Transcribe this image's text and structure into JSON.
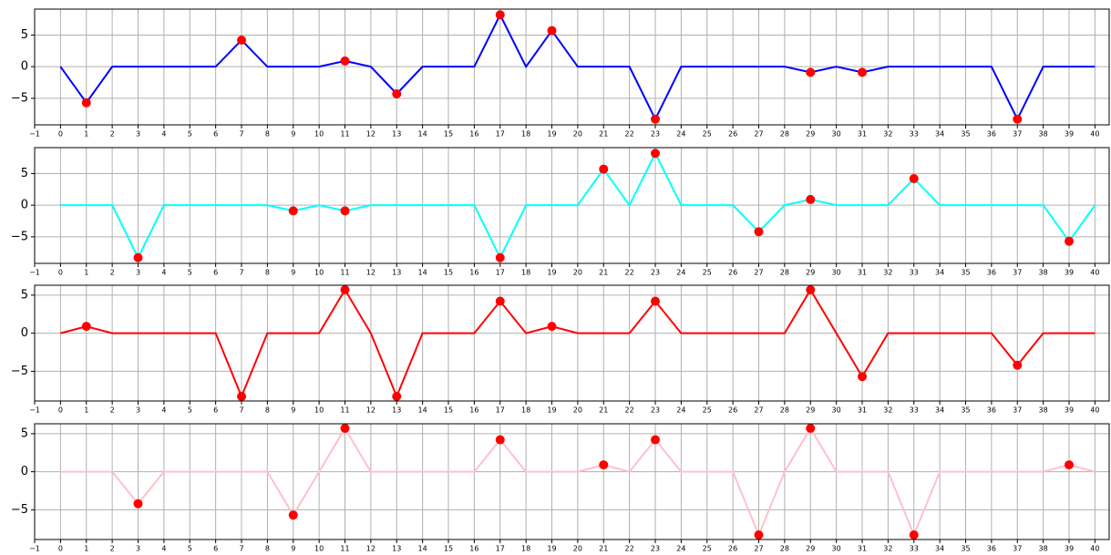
{
  "chart_data": [
    {
      "type": "line",
      "color": "#0000ff",
      "marker_color": "#ff0000",
      "grid": true,
      "x": [
        0,
        1,
        2,
        3,
        4,
        5,
        6,
        7,
        8,
        9,
        10,
        11,
        12,
        13,
        14,
        15,
        16,
        17,
        18,
        19,
        20,
        21,
        22,
        23,
        24,
        25,
        26,
        27,
        28,
        29,
        30,
        31,
        32,
        33,
        34,
        35,
        36,
        37,
        38,
        39,
        40
      ],
      "values": [
        0,
        -5.7,
        0,
        0,
        0,
        0,
        0,
        4.2,
        0,
        0,
        0,
        0.9,
        0,
        -4.3,
        0,
        0,
        0,
        8.2,
        0,
        5.7,
        0,
        0,
        0,
        -8.3,
        0,
        0,
        0,
        0,
        0,
        -0.9,
        0,
        -0.9,
        0,
        0,
        0,
        0,
        0,
        -8.3,
        0,
        0,
        0
      ],
      "xlim": [
        -1,
        40.55
      ],
      "xticks": [
        {
          "value": -1,
          "label": "−1"
        },
        0,
        1,
        2,
        3,
        4,
        5,
        6,
        7,
        8,
        9,
        10,
        11,
        12,
        13,
        14,
        15,
        16,
        17,
        18,
        19,
        20,
        21,
        22,
        23,
        24,
        25,
        26,
        27,
        28,
        29,
        30,
        31,
        32,
        33,
        34,
        35,
        36,
        37,
        38,
        39,
        40
      ],
      "ylim": [
        -9.2,
        9.1
      ],
      "yticks": [
        {
          "value": -5,
          "label": "−5"
        },
        0,
        5
      ]
    },
    {
      "type": "line",
      "color": "#00ffff",
      "marker_color": "#ff0000",
      "grid": true,
      "x": [
        0,
        1,
        2,
        3,
        4,
        5,
        6,
        7,
        8,
        9,
        10,
        11,
        12,
        13,
        14,
        15,
        16,
        17,
        18,
        19,
        20,
        21,
        22,
        23,
        24,
        25,
        26,
        27,
        28,
        29,
        30,
        31,
        32,
        33,
        34,
        35,
        36,
        37,
        38,
        39,
        40
      ],
      "values": [
        0,
        0,
        0,
        -8.3,
        0,
        0,
        0,
        0,
        0,
        -0.9,
        0,
        -0.9,
        0,
        0,
        0,
        0,
        0,
        -8.3,
        0,
        0,
        0,
        5.7,
        0,
        8.2,
        0,
        0,
        0,
        -4.2,
        0,
        0.9,
        0,
        0,
        0,
        4.2,
        0,
        0,
        0,
        0,
        0,
        -5.7,
        0
      ],
      "xlim": [
        -1,
        40.55
      ],
      "xticks": [
        {
          "value": -1,
          "label": "−1"
        },
        0,
        1,
        2,
        3,
        4,
        5,
        6,
        7,
        8,
        9,
        10,
        11,
        12,
        13,
        14,
        15,
        16,
        17,
        18,
        19,
        20,
        21,
        22,
        23,
        24,
        25,
        26,
        27,
        28,
        29,
        30,
        31,
        32,
        33,
        34,
        35,
        36,
        37,
        38,
        39,
        40
      ],
      "ylim": [
        -9.2,
        9.1
      ],
      "yticks": [
        {
          "value": -5,
          "label": "−5"
        },
        0,
        5
      ]
    },
    {
      "type": "line",
      "color": "#ff0000",
      "marker_color": "#ff0000",
      "grid": true,
      "x": [
        0,
        1,
        2,
        3,
        4,
        5,
        6,
        7,
        8,
        9,
        10,
        11,
        12,
        13,
        14,
        15,
        16,
        17,
        18,
        19,
        20,
        21,
        22,
        23,
        24,
        25,
        26,
        27,
        28,
        29,
        30,
        31,
        32,
        33,
        34,
        35,
        36,
        37,
        38,
        39,
        40
      ],
      "values": [
        0,
        0.9,
        0,
        0,
        0,
        0,
        0,
        -8.3,
        0,
        0,
        0,
        5.7,
        0,
        -8.3,
        0,
        0,
        0,
        4.2,
        0,
        0.9,
        0,
        0,
        0,
        4.2,
        0,
        0,
        0,
        0,
        0,
        5.7,
        0,
        -5.7,
        0,
        0,
        0,
        0,
        0,
        -4.2,
        0,
        0,
        0
      ],
      "xlim": [
        -1,
        40.55
      ],
      "xticks": [
        {
          "value": -1,
          "label": "−1"
        },
        0,
        1,
        2,
        3,
        4,
        5,
        6,
        7,
        8,
        9,
        10,
        11,
        12,
        13,
        14,
        15,
        16,
        17,
        18,
        19,
        20,
        21,
        22,
        23,
        24,
        25,
        26,
        27,
        28,
        29,
        30,
        31,
        32,
        33,
        34,
        35,
        36,
        37,
        38,
        39,
        40
      ],
      "ylim": [
        -8.9,
        6.3
      ],
      "yticks": [
        {
          "value": -5,
          "label": "−5"
        },
        0,
        5
      ]
    },
    {
      "type": "line",
      "color": "#ffc0cb",
      "marker_color": "#ff0000",
      "grid": true,
      "x": [
        0,
        1,
        2,
        3,
        4,
        5,
        6,
        7,
        8,
        9,
        10,
        11,
        12,
        13,
        14,
        15,
        16,
        17,
        18,
        19,
        20,
        21,
        22,
        23,
        24,
        25,
        26,
        27,
        28,
        29,
        30,
        31,
        32,
        33,
        34,
        35,
        36,
        37,
        38,
        39,
        40
      ],
      "values": [
        0,
        0,
        0,
        -4.2,
        0,
        0,
        0,
        0,
        0,
        -5.7,
        0,
        5.7,
        0,
        0,
        0,
        0,
        0,
        4.2,
        0,
        0,
        0,
        0.9,
        0,
        4.2,
        0,
        0,
        0,
        -8.3,
        0,
        5.7,
        0,
        0,
        0,
        -8.3,
        0,
        0,
        0,
        0,
        0,
        0.9,
        0
      ],
      "xlim": [
        -1,
        40.55
      ],
      "xticks": [
        {
          "value": -1,
          "label": "−1"
        },
        0,
        1,
        2,
        3,
        4,
        5,
        6,
        7,
        8,
        9,
        10,
        11,
        12,
        13,
        14,
        15,
        16,
        17,
        18,
        19,
        20,
        21,
        22,
        23,
        24,
        25,
        26,
        27,
        28,
        29,
        30,
        31,
        32,
        33,
        34,
        35,
        36,
        37,
        38,
        39,
        40
      ],
      "ylim": [
        -8.9,
        6.3
      ],
      "yticks": [
        {
          "value": -5,
          "label": "−5"
        },
        0,
        5
      ]
    }
  ]
}
